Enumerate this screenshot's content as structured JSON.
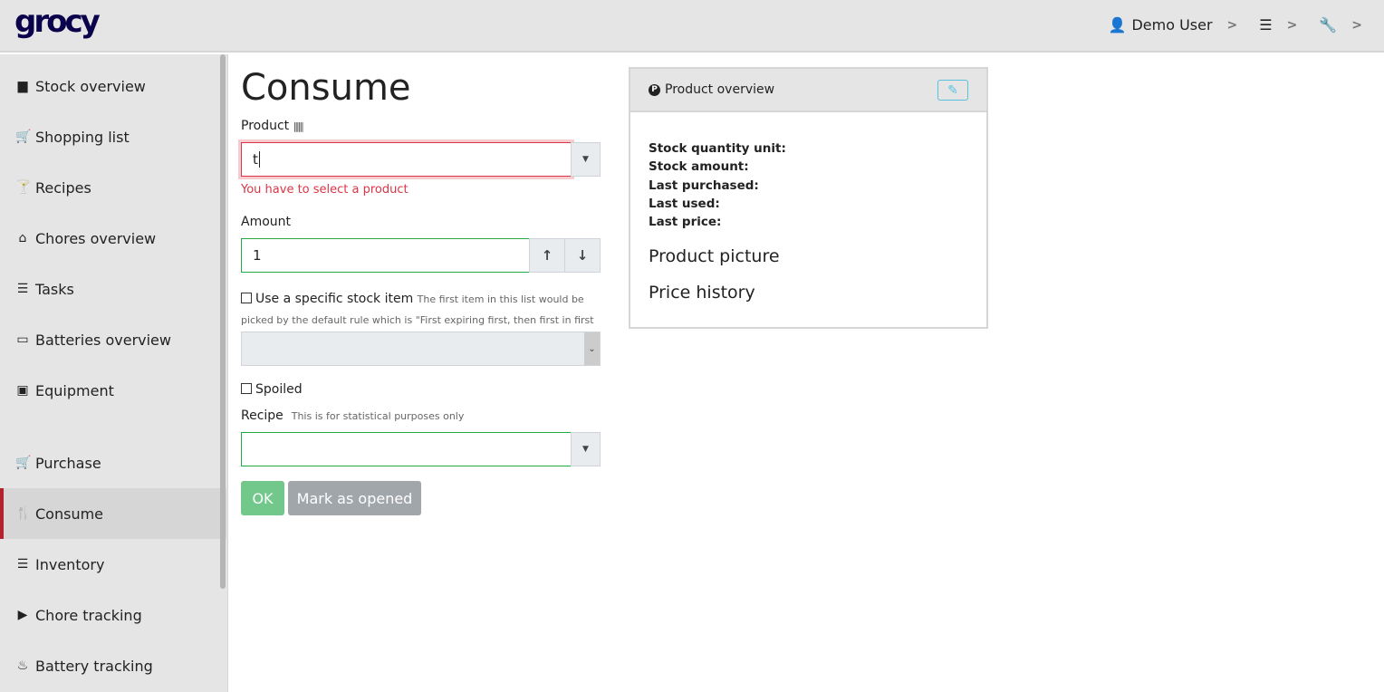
{
  "app": {
    "logo": "grocy"
  },
  "topbar": {
    "user": "Demo User",
    "user_icon": "user-icon",
    "settings_icon": "sliders-icon",
    "tools_icon": "wrench-icon"
  },
  "sidebar": {
    "items": [
      {
        "label": "Stock overview",
        "icon": "box-icon",
        "glyph": "▆"
      },
      {
        "label": "Shopping list",
        "icon": "cart-icon",
        "glyph": "🛒"
      },
      {
        "label": "Recipes",
        "icon": "cocktail-icon",
        "glyph": "🍸"
      },
      {
        "label": "Chores overview",
        "icon": "home-icon",
        "glyph": "⌂"
      },
      {
        "label": "Tasks",
        "icon": "tasks-icon",
        "glyph": "☰"
      },
      {
        "label": "Batteries overview",
        "icon": "battery-icon",
        "glyph": "▭"
      },
      {
        "label": "Equipment",
        "icon": "toolbox-icon",
        "glyph": "▣"
      },
      {
        "label": "Purchase",
        "icon": "cart-icon",
        "glyph": "🛒"
      },
      {
        "label": "Consume",
        "icon": "utensils-icon",
        "glyph": "🍴",
        "active": true
      },
      {
        "label": "Inventory",
        "icon": "list-icon",
        "glyph": "☰"
      },
      {
        "label": "Chore tracking",
        "icon": "play-icon",
        "glyph": "▶"
      },
      {
        "label": "Battery tracking",
        "icon": "fire-icon",
        "glyph": "♨"
      }
    ]
  },
  "form": {
    "title": "Consume",
    "product_label": "Product",
    "product_value": "t",
    "product_error": "You have to select a product",
    "amount_label": "Amount",
    "amount_value": "1",
    "specific_label": "Use a specific stock item",
    "specific_hint": "The first item in this list would be picked by the default rule which is \"First expiring first, then first in first out\"",
    "spoiled_label": "Spoiled",
    "recipe_label": "Recipe",
    "recipe_hint": "This is for statistical purposes only",
    "ok": "OK",
    "mark_opened": "Mark as opened"
  },
  "product_overview": {
    "title": "Product overview",
    "facts": [
      "Stock quantity unit:",
      "Stock amount:",
      "Last purchased:",
      "Last used:",
      "Last price:"
    ],
    "picture": "Product picture",
    "price_history": "Price history"
  },
  "colors": {
    "accent": "#b3212f",
    "logo": "#0b024c",
    "valid": "#28a745",
    "invalid": "#dc3545",
    "ok_button": "#71c88a",
    "secondary_button": "#a1a6ab",
    "info": "#5bc0de"
  }
}
